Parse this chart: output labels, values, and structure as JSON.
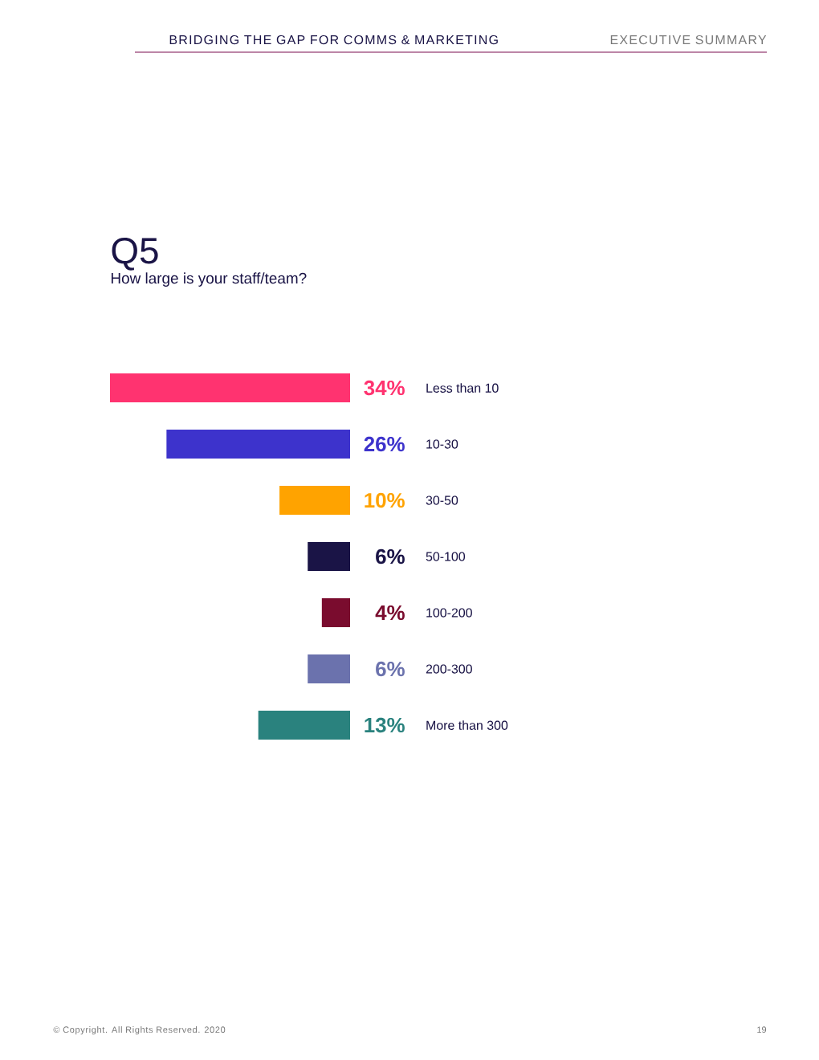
{
  "chart_data": {
    "type": "bar",
    "orientation": "horizontal",
    "title": "Q5",
    "subtitle": "How large is your staff/team?",
    "categories": [
      "Less than 10",
      "10-30",
      "30-50",
      "50-100",
      "100-200",
      "200-300",
      "More than 300"
    ],
    "values": [
      34,
      26,
      10,
      6,
      4,
      6,
      13
    ],
    "colors": [
      "#ff3370",
      "#3d33cc",
      "#ffa300",
      "#1a1446",
      "#7a0c2e",
      "#6b72ad",
      "#2a827e"
    ],
    "value_labels": [
      "34%",
      "26%",
      "10%",
      "6%",
      "4%",
      "6%",
      "13%"
    ],
    "tick_labels": "y",
    "annotations": [
      "BRIDGING THE GAP FOR COMMS & MARKETING",
      "EXECUTIVE SUMMARY",
      "© Copyright. All Rights Reserved. 2020",
      "19"
    ]
  }
}
